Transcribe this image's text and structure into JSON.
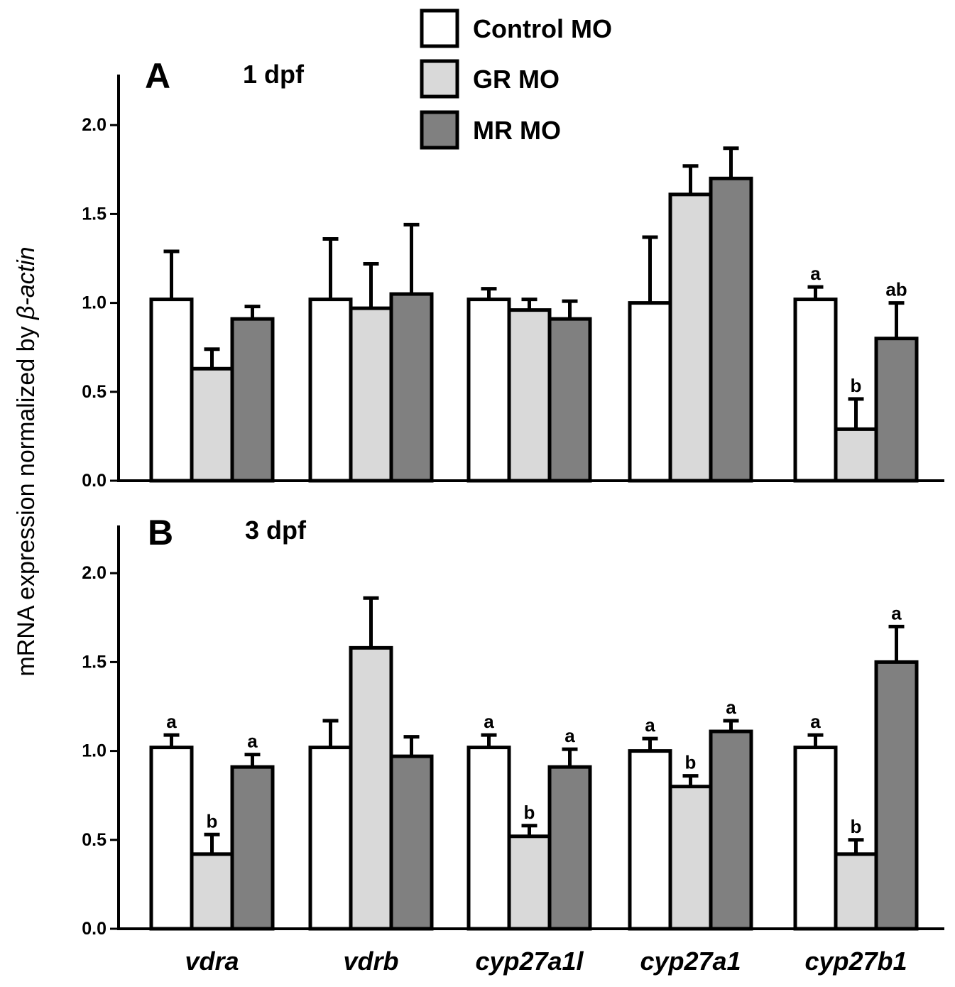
{
  "chart_data": {
    "type": "bar",
    "ylabel_prefix": "mRNA expression normalized by ",
    "ylabel_italic": "β-actin",
    "categories": [
      "vdra",
      "vdrb",
      "cyp27a1l",
      "cyp27a1",
      "cyp27b1"
    ],
    "legend": {
      "placement": "top",
      "entries": [
        {
          "name": "Control MO",
          "color": "#ffffff"
        },
        {
          "name": "GR MO",
          "color": "#d9d9d9"
        },
        {
          "name": "MR MO",
          "color": "#808080"
        }
      ]
    },
    "yticks": [
      "0.0",
      "0.5",
      "1.0",
      "1.5",
      "2.0"
    ],
    "ylim": [
      0,
      2.2
    ],
    "panels": [
      {
        "letter": "A",
        "subtitle": "1 dpf",
        "series": [
          {
            "name": "Control MO",
            "values": [
              1.02,
              1.02,
              1.02,
              1.0,
              1.02
            ],
            "errors": [
              0.27,
              0.34,
              0.06,
              0.37,
              0.07
            ]
          },
          {
            "name": "GR MO",
            "values": [
              0.63,
              0.97,
              0.96,
              1.61,
              0.29
            ],
            "errors": [
              0.11,
              0.25,
              0.06,
              0.16,
              0.17
            ]
          },
          {
            "name": "MR MO",
            "values": [
              0.91,
              1.05,
              0.91,
              1.7,
              0.8
            ],
            "errors": [
              0.07,
              0.39,
              0.1,
              0.17,
              0.2
            ]
          }
        ],
        "letters": [
          [
            null,
            null,
            null,
            null,
            "a"
          ],
          [
            null,
            null,
            null,
            null,
            "b"
          ],
          [
            null,
            null,
            null,
            null,
            "ab"
          ]
        ]
      },
      {
        "letter": "B",
        "subtitle": "3 dpf",
        "series": [
          {
            "name": "Control MO",
            "values": [
              1.02,
              1.02,
              1.02,
              1.0,
              1.02
            ],
            "errors": [
              0.07,
              0.15,
              0.07,
              0.07,
              0.07
            ]
          },
          {
            "name": "GR MO",
            "values": [
              0.42,
              1.58,
              0.52,
              0.8,
              0.42
            ],
            "errors": [
              0.11,
              0.28,
              0.06,
              0.06,
              0.08
            ]
          },
          {
            "name": "MR MO",
            "values": [
              0.91,
              0.97,
              0.91,
              1.11,
              1.5
            ],
            "errors": [
              0.07,
              0.11,
              0.1,
              0.06,
              0.2
            ]
          }
        ],
        "letters": [
          [
            "a",
            null,
            "a",
            "a",
            "a"
          ],
          [
            "b",
            null,
            "b",
            "b",
            "b"
          ],
          [
            "a",
            null,
            "a",
            "a",
            "a"
          ]
        ]
      }
    ]
  }
}
